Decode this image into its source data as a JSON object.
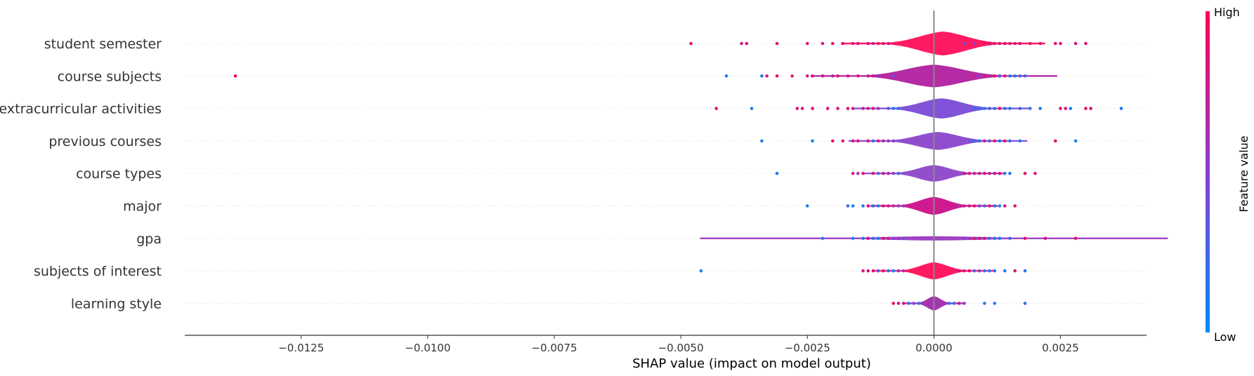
{
  "chart_data": {
    "type": "scatter",
    "subtype": "shap-violin-summary",
    "xlabel": "SHAP value (impact on model output)",
    "xlim": [
      -0.0148,
      0.0042
    ],
    "x_ticks": [
      -0.0125,
      -0.01,
      -0.0075,
      -0.005,
      -0.0025,
      0.0,
      0.0025
    ],
    "x_tick_labels": [
      "−0.0125",
      "−0.0100",
      "−0.0075",
      "−0.0050",
      "−0.0025",
      "0.0000",
      "0.0025"
    ],
    "colorbar": {
      "label": "Feature value",
      "high_label": "High",
      "low_label": "Low",
      "high_color": "#ff0052",
      "low_color": "#008bfb"
    },
    "grid": "dotted horizontal per feature",
    "features": [
      {
        "name": "student semester",
        "violin_color": "#ff0f5a",
        "spread": 0.00048,
        "peak": 0.00018,
        "height": 1.0,
        "points": [
          [
            -0.0048,
            0.9
          ],
          [
            -0.0038,
            0.8
          ],
          [
            -0.0037,
            0.85
          ],
          [
            -0.0031,
            0.9
          ],
          [
            -0.0025,
            0.85
          ],
          [
            -0.0022,
            0.8
          ],
          [
            -0.002,
            0.9
          ],
          [
            -0.0018,
            0.85
          ],
          [
            -0.0016,
            0.8
          ],
          [
            -0.0015,
            0.9
          ],
          [
            -0.0013,
            0.85
          ],
          [
            -0.0012,
            0.75
          ],
          [
            -0.0011,
            0.9
          ],
          [
            -0.001,
            0.85
          ],
          [
            -0.0009,
            0.8
          ],
          [
            0.001,
            0.85
          ],
          [
            0.0011,
            0.9
          ],
          [
            0.0012,
            0.8
          ],
          [
            0.0013,
            0.85
          ],
          [
            0.0014,
            0.9
          ],
          [
            0.0015,
            0.85
          ],
          [
            0.0016,
            0.8
          ],
          [
            0.0017,
            0.9
          ],
          [
            0.0019,
            0.85
          ],
          [
            0.0021,
            0.9
          ],
          [
            0.0024,
            0.85
          ],
          [
            0.0025,
            0.9
          ],
          [
            0.0028,
            0.85
          ],
          [
            0.003,
            0.9
          ],
          [
            0.0006,
            0.4
          ],
          [
            0.0008,
            0.5
          ]
        ]
      },
      {
        "name": "course subjects",
        "violin_color": "#b020a0",
        "spread": 0.00058,
        "peak": 0.0,
        "height": 0.95,
        "points": [
          [
            -0.0138,
            0.95
          ],
          [
            -0.0041,
            0.1
          ],
          [
            -0.0034,
            0.15
          ],
          [
            -0.0033,
            0.8
          ],
          [
            -0.0031,
            0.9
          ],
          [
            -0.0028,
            0.85
          ],
          [
            -0.0025,
            0.8
          ],
          [
            -0.0024,
            0.9
          ],
          [
            -0.0022,
            0.85
          ],
          [
            -0.002,
            0.7
          ],
          [
            -0.0019,
            0.9
          ],
          [
            -0.0017,
            0.8
          ],
          [
            -0.0015,
            0.85
          ],
          [
            -0.0013,
            0.75
          ],
          [
            -0.0012,
            0.8
          ],
          [
            -0.0011,
            0.6
          ],
          [
            -0.001,
            0.7
          ],
          [
            -0.0008,
            0.4
          ],
          [
            0.0008,
            0.8
          ],
          [
            0.0009,
            0.5
          ],
          [
            0.001,
            0.85
          ],
          [
            0.0011,
            0.7
          ],
          [
            0.0012,
            0.9
          ],
          [
            0.0013,
            0.4
          ],
          [
            0.0014,
            0.8
          ],
          [
            0.0015,
            0.2
          ],
          [
            0.0016,
            0.1
          ],
          [
            0.0017,
            0.15
          ],
          [
            0.0018,
            0.3
          ]
        ]
      },
      {
        "name": "extracurricular activities",
        "violin_color": "#7a4ad6",
        "spread": 0.00042,
        "peak": 0.00015,
        "height": 0.85,
        "points": [
          [
            -0.0043,
            0.9
          ],
          [
            -0.0036,
            0.1
          ],
          [
            -0.0027,
            0.85
          ],
          [
            -0.0026,
            0.8
          ],
          [
            -0.0024,
            0.9
          ],
          [
            -0.0021,
            0.85
          ],
          [
            -0.0019,
            0.8
          ],
          [
            -0.0017,
            0.9
          ],
          [
            -0.0016,
            0.85
          ],
          [
            -0.0014,
            0.75
          ],
          [
            -0.0013,
            0.8
          ],
          [
            -0.0012,
            0.9
          ],
          [
            -0.0011,
            0.6
          ],
          [
            -0.0009,
            0.3
          ],
          [
            -0.0008,
            0.15
          ],
          [
            -0.0007,
            0.1
          ],
          [
            0.0008,
            0.2
          ],
          [
            0.0009,
            0.15
          ],
          [
            0.001,
            0.1
          ],
          [
            0.0011,
            0.3
          ],
          [
            0.0012,
            0.2
          ],
          [
            0.0013,
            0.9
          ],
          [
            0.0014,
            0.15
          ],
          [
            0.0015,
            0.1
          ],
          [
            0.0017,
            0.2
          ],
          [
            0.0019,
            0.15
          ],
          [
            0.0021,
            0.1
          ],
          [
            0.0025,
            0.9
          ],
          [
            0.0026,
            0.85
          ],
          [
            0.0027,
            0.1
          ],
          [
            0.003,
            0.9
          ],
          [
            0.0031,
            0.85
          ],
          [
            0.0037,
            0.1
          ]
        ]
      },
      {
        "name": "previous courses",
        "violin_color": "#8a45cc",
        "spread": 0.00042,
        "peak": 8e-05,
        "height": 0.75,
        "points": [
          [
            -0.0034,
            0.1
          ],
          [
            -0.0024,
            0.1
          ],
          [
            -0.002,
            0.9
          ],
          [
            -0.0018,
            0.85
          ],
          [
            -0.0016,
            0.8
          ],
          [
            -0.0015,
            0.9
          ],
          [
            -0.0013,
            0.85
          ],
          [
            -0.0012,
            0.2
          ],
          [
            -0.0011,
            0.8
          ],
          [
            -0.001,
            0.7
          ],
          [
            -0.0009,
            0.6
          ],
          [
            -0.0008,
            0.5
          ],
          [
            0.0007,
            0.3
          ],
          [
            0.0008,
            0.2
          ],
          [
            0.0009,
            0.15
          ],
          [
            0.001,
            0.8
          ],
          [
            0.0011,
            0.4
          ],
          [
            0.0012,
            0.85
          ],
          [
            0.0013,
            0.2
          ],
          [
            0.0014,
            0.9
          ],
          [
            0.0015,
            0.15
          ],
          [
            0.0017,
            0.1
          ],
          [
            0.0024,
            0.9
          ],
          [
            0.0028,
            0.1
          ]
        ]
      },
      {
        "name": "course types",
        "violin_color": "#8d44c9",
        "spread": 0.00033,
        "peak": 0.0,
        "height": 0.7,
        "points": [
          [
            -0.0031,
            0.1
          ],
          [
            -0.0016,
            0.8
          ],
          [
            -0.0015,
            0.6
          ],
          [
            -0.0014,
            0.9
          ],
          [
            -0.0012,
            0.85
          ],
          [
            -0.0011,
            0.3
          ],
          [
            -0.001,
            0.8
          ],
          [
            -0.0009,
            0.7
          ],
          [
            -0.0008,
            0.5
          ],
          [
            -0.0007,
            0.2
          ],
          [
            0.0006,
            0.85
          ],
          [
            0.0007,
            0.9
          ],
          [
            0.0008,
            0.8
          ],
          [
            0.0009,
            0.85
          ],
          [
            0.001,
            0.9
          ],
          [
            0.0011,
            0.8
          ],
          [
            0.0012,
            0.85
          ],
          [
            0.0013,
            0.9
          ],
          [
            0.0014,
            0.2
          ],
          [
            0.0015,
            0.1
          ],
          [
            0.0018,
            0.9
          ],
          [
            0.002,
            0.85
          ]
        ]
      },
      {
        "name": "major",
        "violin_color": "#cc0f8a",
        "spread": 0.0003,
        "peak": 0.0,
        "height": 0.75,
        "points": [
          [
            -0.0025,
            0.1
          ],
          [
            -0.0017,
            0.2
          ],
          [
            -0.0016,
            0.1
          ],
          [
            -0.0014,
            0.15
          ],
          [
            -0.0013,
            0.9
          ],
          [
            -0.0012,
            0.2
          ],
          [
            -0.0011,
            0.1
          ],
          [
            -0.001,
            0.8
          ],
          [
            -0.0009,
            0.85
          ],
          [
            -0.0008,
            0.7
          ],
          [
            -0.0007,
            0.5
          ],
          [
            -0.0006,
            0.6
          ],
          [
            0.0005,
            0.6
          ],
          [
            0.0006,
            0.8
          ],
          [
            0.0007,
            0.85
          ],
          [
            0.0008,
            0.9
          ],
          [
            0.0009,
            0.5
          ],
          [
            0.001,
            0.2
          ],
          [
            0.0011,
            0.8
          ],
          [
            0.0012,
            0.15
          ],
          [
            0.0013,
            0.1
          ],
          [
            0.0014,
            0.85
          ],
          [
            0.0016,
            0.9
          ]
        ]
      },
      {
        "name": "gpa",
        "violin_color": "#9a38c0",
        "spread": 0.0011,
        "peak": 0.0,
        "height": 0.18,
        "points": [
          [
            -0.0022,
            0.1
          ],
          [
            -0.0016,
            0.1
          ],
          [
            -0.0014,
            0.15
          ],
          [
            -0.0013,
            0.9
          ],
          [
            -0.0012,
            0.2
          ],
          [
            -0.0011,
            0.1
          ],
          [
            -0.001,
            0.85
          ],
          [
            -0.0009,
            0.8
          ],
          [
            -0.0008,
            0.5
          ],
          [
            -0.0007,
            0.6
          ],
          [
            -0.0006,
            0.4
          ],
          [
            0.0006,
            0.5
          ],
          [
            0.0007,
            0.6
          ],
          [
            0.0008,
            0.9
          ],
          [
            0.0009,
            0.8
          ],
          [
            0.001,
            0.85
          ],
          [
            0.0011,
            0.3
          ],
          [
            0.0012,
            0.15
          ],
          [
            0.0013,
            0.1
          ],
          [
            0.0015,
            0.2
          ],
          [
            0.0018,
            0.9
          ],
          [
            0.0022,
            0.85
          ],
          [
            0.0028,
            0.9
          ]
        ]
      },
      {
        "name": "subjects of interest",
        "violin_color": "#ff0f5a",
        "spread": 0.00028,
        "peak": 0.0,
        "height": 0.72,
        "points": [
          [
            -0.0046,
            0.1
          ],
          [
            -0.0014,
            0.8
          ],
          [
            -0.0013,
            0.85
          ],
          [
            -0.0012,
            0.9
          ],
          [
            -0.0011,
            0.3
          ],
          [
            -0.001,
            0.8
          ],
          [
            -0.0009,
            0.15
          ],
          [
            -0.0008,
            0.1
          ],
          [
            -0.0007,
            0.5
          ],
          [
            -0.0006,
            0.7
          ],
          [
            0.0005,
            0.8
          ],
          [
            0.0006,
            0.85
          ],
          [
            0.0007,
            0.9
          ],
          [
            0.0008,
            0.2
          ],
          [
            0.0009,
            0.5
          ],
          [
            0.001,
            0.15
          ],
          [
            0.0011,
            0.1
          ],
          [
            0.0012,
            0.2
          ],
          [
            0.0014,
            0.1
          ],
          [
            0.0016,
            0.85
          ],
          [
            0.0018,
            0.15
          ]
        ]
      },
      {
        "name": "learning style",
        "violin_color": "#a02aaa",
        "spread": 0.00014,
        "peak": 0.0,
        "height": 0.6,
        "points": [
          [
            -0.0008,
            0.9
          ],
          [
            -0.0007,
            0.8
          ],
          [
            -0.0006,
            0.85
          ],
          [
            -0.0005,
            0.2
          ],
          [
            -0.0004,
            0.5
          ],
          [
            -0.0003,
            0.1
          ],
          [
            0.0003,
            0.15
          ],
          [
            0.0004,
            0.2
          ],
          [
            0.0005,
            0.8
          ],
          [
            0.0006,
            0.5
          ],
          [
            0.001,
            0.15
          ],
          [
            0.0012,
            0.1
          ],
          [
            0.0018,
            0.2
          ]
        ]
      }
    ]
  }
}
